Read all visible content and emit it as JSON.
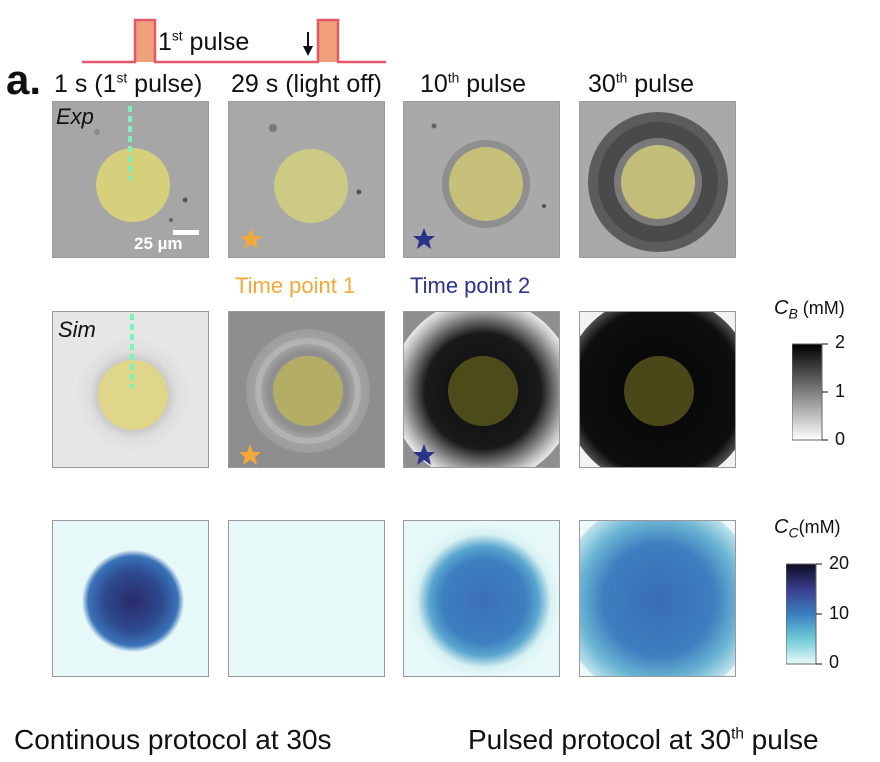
{
  "panel_label": "a.",
  "pulse_diagram": {
    "label_main": "1",
    "label_sup": "st",
    "label_rest": " pulse",
    "pulse_color": "#e2586b",
    "fill_color": "#f0a07a",
    "arrow": "down-arrow-icon"
  },
  "columns": [
    {
      "pre": "1 s (1",
      "sup": "st",
      "post": " pulse)"
    },
    {
      "pre": "29 s (light off)",
      "sup": "",
      "post": ""
    },
    {
      "pre": "10",
      "sup": "th",
      "post": " pulse"
    },
    {
      "pre": "30",
      "sup": "th",
      "post": " pulse"
    }
  ],
  "rows": {
    "exp_label": "Exp",
    "sim_label": "Sim"
  },
  "scale_bar": "25 µm",
  "time_points": [
    {
      "label": "Time point 1",
      "color": "#f2a93b",
      "marker": "star-icon"
    },
    {
      "label": "Time point 2",
      "color": "#2a3388",
      "marker": "star-icon"
    }
  ],
  "colorbar_cb": {
    "symbol": "C",
    "sub": "B",
    "unit": " (mM)",
    "ticks": [
      "2",
      "1",
      "0"
    ]
  },
  "colorbar_cc": {
    "symbol": "C",
    "sub": "C",
    "unit": "(mM)",
    "ticks": [
      "20",
      "10",
      "0"
    ]
  },
  "captions": {
    "left": "Continous protocol at 30s",
    "right_pre": "Pulsed protocol at 30",
    "right_sup": "th",
    "right_post": " pulse"
  },
  "colors": {
    "spot_yellow": "#e8e06a",
    "dashed_line": "#7ff2b8",
    "cc_dark": "#2a2a6a",
    "cc_mid": "#3d7fbf",
    "cc_light": "#e6f8f8"
  }
}
